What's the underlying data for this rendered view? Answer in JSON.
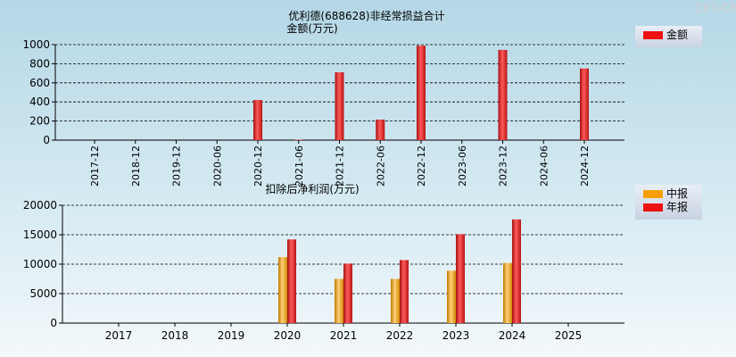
{
  "watermark": "CFi.CN",
  "chart_data": [
    {
      "type": "bar",
      "title": "优利德(688628)非经常损益合计",
      "ylabel": "金额(万元)",
      "categories": [
        "2017-12",
        "2018-12",
        "2019-12",
        "2020-06",
        "2020-12",
        "2021-06",
        "2021-12",
        "2022-06",
        "2022-12",
        "2023-06",
        "2023-12",
        "2024-06",
        "2024-12"
      ],
      "series": [
        {
          "name": "金额",
          "color": "#ee1111",
          "values": [
            0,
            0,
            0,
            0,
            420,
            5,
            710,
            215,
            990,
            0,
            945,
            0,
            750
          ]
        }
      ],
      "ylim": [
        0,
        1000
      ],
      "yticks": [
        0,
        200,
        400,
        600,
        800,
        1000
      ],
      "grid": true,
      "legend": "top-right"
    },
    {
      "type": "bar",
      "title": "扣除后净利润(万元)",
      "categories": [
        "2017",
        "2018",
        "2019",
        "2020",
        "2021",
        "2022",
        "2023",
        "2024",
        "2025"
      ],
      "series": [
        {
          "name": "中报",
          "color": "#f5a000",
          "values": [
            null,
            null,
            null,
            11200,
            7500,
            7500,
            8900,
            10200,
            null
          ]
        },
        {
          "name": "年报",
          "color": "#ee1111",
          "values": [
            null,
            null,
            null,
            14200,
            10100,
            10700,
            15100,
            17600,
            null
          ]
        }
      ],
      "ylim": [
        0,
        20000
      ],
      "yticks": [
        0,
        5000,
        10000,
        15000,
        20000
      ],
      "grid": true,
      "legend": "top-right"
    }
  ]
}
